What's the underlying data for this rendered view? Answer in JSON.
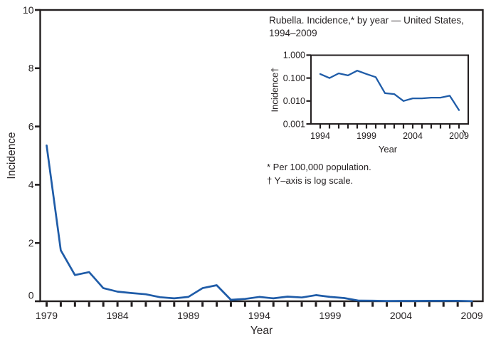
{
  "figure": {
    "background": "#ffffff",
    "axis_color": "#231f20",
    "text_color": "#231f20",
    "line_color": "#1f5ca8"
  },
  "chart_data": [
    {
      "id": "main",
      "type": "line",
      "title": "",
      "xlabel": "Year",
      "ylabel": "Incidence",
      "x": [
        1979,
        1980,
        1981,
        1982,
        1983,
        1984,
        1985,
        1986,
        1987,
        1988,
        1989,
        1990,
        1991,
        1992,
        1993,
        1994,
        1995,
        1996,
        1997,
        1998,
        1999,
        2000,
        2001,
        2002,
        2003,
        2004,
        2005,
        2006,
        2007,
        2008,
        2009
      ],
      "values": [
        5.35,
        1.75,
        0.9,
        1.0,
        0.45,
        0.33,
        0.28,
        0.24,
        0.14,
        0.1,
        0.15,
        0.45,
        0.55,
        0.05,
        0.08,
        0.15,
        0.1,
        0.16,
        0.13,
        0.21,
        0.15,
        0.11,
        0.022,
        0.02,
        0.01,
        0.013,
        0.013,
        0.014,
        0.014,
        0.017,
        0.004
      ],
      "yscale": "linear",
      "ylim": [
        0,
        10
      ],
      "yticks": [
        0,
        2,
        4,
        6,
        8,
        10
      ],
      "xticks_every_year": true,
      "xtick_labeled": [
        1979,
        1984,
        1989,
        1994,
        1999,
        2004,
        2009
      ],
      "grid": false,
      "legend": "none"
    },
    {
      "id": "inset",
      "type": "line",
      "title": "Rubella. Incidence,* by year — United States, 1994–2009",
      "title_lines": [
        "Rubella. Incidence,* by year — United States,",
        "1994–2009"
      ],
      "xlabel": "Year",
      "ylabel": "Incidence†",
      "x": [
        1994,
        1995,
        1996,
        1997,
        1998,
        1999,
        2000,
        2001,
        2002,
        2003,
        2004,
        2005,
        2006,
        2007,
        2008,
        2009
      ],
      "values": [
        0.15,
        0.1,
        0.16,
        0.13,
        0.21,
        0.15,
        0.11,
        0.022,
        0.02,
        0.01,
        0.013,
        0.013,
        0.014,
        0.014,
        0.017,
        0.004
      ],
      "yscale": "log",
      "ylim": [
        0.001,
        1.0
      ],
      "ytick_labels": [
        "0.001",
        "0.010",
        "0.100",
        "1.000"
      ],
      "xticks_every_year": true,
      "xtick_labeled": [
        1994,
        1999,
        2004,
        2009
      ],
      "grid": false,
      "legend": "none"
    }
  ],
  "footnotes": [
    "* Per 100,000 population.",
    "† Y–axis is log scale."
  ]
}
